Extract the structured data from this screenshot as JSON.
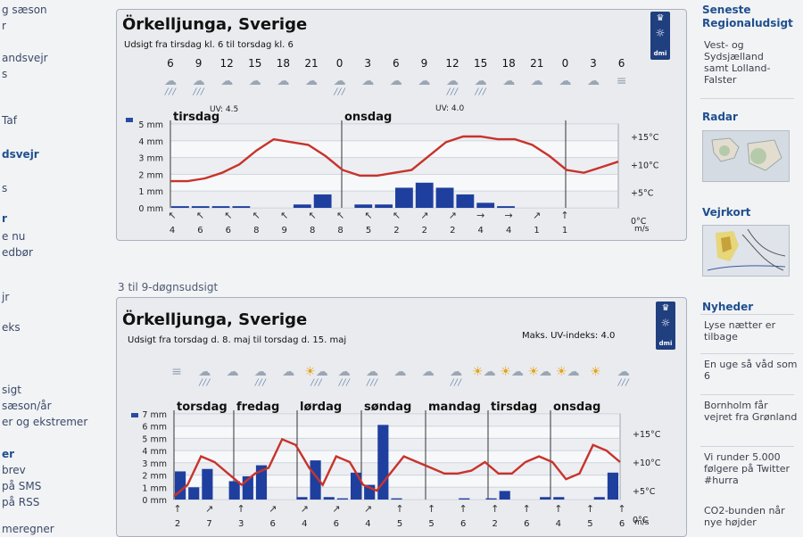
{
  "left_sidebar": {
    "items": [
      {
        "label": "g sæson",
        "bold": false
      },
      {
        "label": "r",
        "bold": false
      },
      {
        "label": "andsvejr",
        "bold": false
      },
      {
        "label": "s",
        "bold": false
      },
      {
        "label": "Taf",
        "bold": false
      },
      {
        "label": "dsvejr",
        "bold": true
      },
      {
        "label": "s",
        "bold": false
      },
      {
        "label": "r",
        "bold": true
      },
      {
        "label": "e nu",
        "bold": false
      },
      {
        "label": "edbør",
        "bold": false
      },
      {
        "label": "jr",
        "bold": false
      },
      {
        "label": "eks",
        "bold": false
      },
      {
        "label": "sigt",
        "bold": false
      },
      {
        "label": "sæson/år",
        "bold": false
      },
      {
        "label": "er og ekstremer",
        "bold": false
      },
      {
        "label": "er",
        "bold": true
      },
      {
        "label": "brev",
        "bold": false
      },
      {
        "label": "på SMS",
        "bold": false
      },
      {
        "label": "på RSS",
        "bold": false
      },
      {
        "label": "meregner",
        "bold": false
      }
    ]
  },
  "panel1": {
    "title": "Örkelljunga, Sverige",
    "subtitle": "Udsigt fra tirsdag kl. 6 til torsdag kl. 6",
    "dmi_label": "dmi",
    "hours": [
      "6",
      "9",
      "12",
      "15",
      "18",
      "21",
      "0",
      "3",
      "6",
      "9",
      "12",
      "15",
      "18",
      "21",
      "0",
      "3",
      "6"
    ],
    "icons": [
      "cloud-rain",
      "cloud-rain",
      "cloud",
      "cloud",
      "cloud",
      "cloud",
      "cloud-rain",
      "cloud",
      "cloud",
      "cloud",
      "cloud-rain",
      "cloud-rain",
      "cloud",
      "cloud",
      "cloud",
      "cloud",
      "fog"
    ],
    "uv_labels": [
      "UV: 4.5",
      "UV: 4.0"
    ],
    "day_labels": [
      "tirsdag",
      "onsdag"
    ],
    "winds": [
      "4",
      "6",
      "6",
      "8",
      "9",
      "8",
      "8",
      "5",
      "2",
      "2",
      "2",
      "4",
      "4",
      "1",
      "1"
    ],
    "wind_directions": [
      "↖",
      "↖",
      "↖",
      "↖",
      "↖",
      "↖",
      "↖",
      "↖",
      "↖",
      "↗",
      "↗",
      "→",
      "→",
      "↗",
      "↑"
    ],
    "wind_unit": "m/s",
    "colors": {
      "temp_line": "#c8332b",
      "precip_bar": "#1f3f9f",
      "grid": "#c6ccd6"
    },
    "chart_data": {
      "type": "bar+line",
      "x_hours": [
        "6",
        "9",
        "12",
        "15",
        "18",
        "21",
        "0",
        "3",
        "6",
        "9",
        "12",
        "15",
        "18",
        "21",
        "0",
        "3",
        "6"
      ],
      "precip_mm": [
        0.1,
        0.1,
        0.1,
        0.1,
        0,
        0,
        0.2,
        0.8,
        0,
        0.2,
        0.2,
        1.2,
        1.5,
        1.2,
        0.8,
        0.3,
        0.1,
        0,
        0,
        0,
        0,
        0
      ],
      "temperature_c": [
        7,
        7,
        7.5,
        8.5,
        10,
        12.5,
        14.5,
        14,
        13.5,
        11.5,
        9,
        8,
        8,
        8.5,
        9,
        11.5,
        14,
        15,
        15,
        14.5,
        14.5,
        13.5,
        11.5,
        9,
        8.5,
        9.5,
        10.5
      ],
      "left_axis_ticks": [
        "5 mm",
        "4 mm",
        "3 mm",
        "2 mm",
        "1 mm",
        "0 mm"
      ],
      "right_axis_ticks": [
        "+15°C",
        "+10°C",
        "+5°C",
        "0°C"
      ],
      "precip_range": [
        0,
        5
      ],
      "temp_range": [
        0,
        15
      ],
      "day_labels": [
        "tirsdag",
        "onsdag"
      ],
      "grid": true
    }
  },
  "section2_title": "3 til 9-døgnsudsigt",
  "panel2": {
    "title": "Örkelljunga, Sverige",
    "subtitle": "Udsigt fra torsdag d. 8. maj til torsdag d. 15. maj",
    "uv_max": "Maks. UV-indeks: 4.0",
    "dmi_label": "dmi",
    "icons": [
      "fog",
      "cloud-rain",
      "cloud",
      "cloud-rain",
      "cloud",
      "sun-cloud-rain",
      "cloud-rain",
      "cloud-rain",
      "cloud",
      "cloud",
      "cloud-rain",
      "sun-cloud",
      "sun-cloud",
      "sun-cloud",
      "sun-cloud",
      "sun",
      "cloud-rain"
    ],
    "day_labels": [
      "torsdag",
      "fredag",
      "lørdag",
      "søndag",
      "mandag",
      "tirsdag",
      "onsdag"
    ],
    "winds": [
      "2",
      "7",
      "3",
      "6",
      "4",
      "6",
      "4",
      "5",
      "5",
      "6",
      "2",
      "6",
      "4",
      "5",
      "6"
    ],
    "wind_directions": [
      "↑",
      "↗",
      "↑",
      "↗",
      "↗",
      "↗",
      "↗",
      "↑",
      "↑",
      "↑",
      "↑",
      "↑",
      "↑",
      "↑",
      "↑"
    ],
    "wind_unit": "m/s",
    "colors": {
      "temp_line": "#c8332b",
      "precip_bar": "#1f3f9f",
      "grid": "#c6ccd6"
    },
    "chart_data": {
      "type": "bar+line",
      "precip_mm": [
        2.3,
        1,
        2.5,
        0,
        1.5,
        1.9,
        2.8,
        0,
        0,
        0.2,
        3.2,
        0.2,
        0.1,
        2.2,
        1.2,
        6.1,
        0.1,
        0,
        0,
        0,
        0,
        0.1,
        0,
        0.1,
        0.7,
        0,
        0,
        0.2,
        0.2,
        0,
        0,
        0.2,
        2.2
      ],
      "temperature_c": [
        4,
        6,
        11,
        10,
        8,
        6,
        8,
        9,
        14,
        13,
        9,
        6,
        11,
        10,
        6,
        5,
        8,
        11,
        10,
        9,
        8,
        8,
        8.5,
        10,
        8,
        8,
        10,
        11,
        10,
        7,
        8,
        13,
        12,
        10
      ],
      "left_axis_ticks": [
        "7 mm",
        "6 mm",
        "5 mm",
        "4 mm",
        "3 mm",
        "2 mm",
        "1 mm",
        "0 mm"
      ],
      "right_axis_ticks": [
        "+15°C",
        "+10°C",
        "+5°C",
        "0°C"
      ],
      "precip_range": [
        0,
        7
      ],
      "temp_range": [
        0,
        15
      ],
      "day_labels": [
        "torsdag",
        "fredag",
        "lørdag",
        "søndag",
        "mandag",
        "tirsdag",
        "onsdag"
      ],
      "grid": true
    }
  },
  "right_sidebar": {
    "regional": {
      "heading": "Seneste Regionaludsigt",
      "text": "Vest- og Sydsjælland samt Lolland-Falster"
    },
    "radar": {
      "heading": "Radar"
    },
    "vejrkort": {
      "heading": "Vejrkort"
    },
    "news": {
      "heading": "Nyheder",
      "items": [
        "Lyse nætter er tilbage",
        "En uge så våd som 6",
        "Bornholm får vejret fra Grønland",
        "Vi runder 5.000 følgere på Twitter #hurra",
        "CO2-bunden når nye højder"
      ]
    }
  }
}
